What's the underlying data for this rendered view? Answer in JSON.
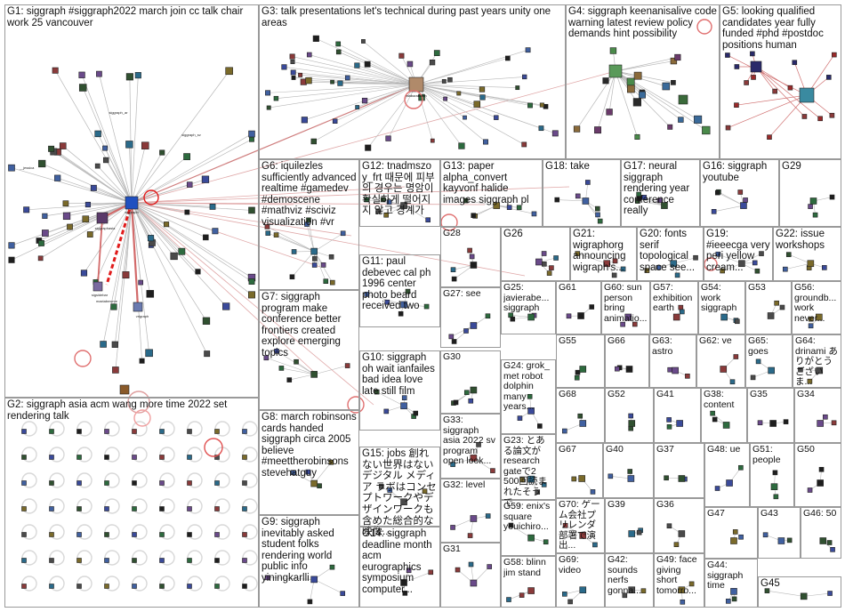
{
  "groups": [
    {
      "id": "G1",
      "label": "G1: siggraph #siggraph2022 march join cc talk chair work 25 vancouver",
      "density": 60
    },
    {
      "id": "G2",
      "label": "G2: siggraph asia acm wang more time 2022 set rendering talk",
      "density": 0
    },
    {
      "id": "G3",
      "label": "G3: talk presentations let's technical during past years unity one areas",
      "density": 50
    },
    {
      "id": "G4",
      "label": "G4: siggraph keenanisalive code warning latest review policy demands hint possibility",
      "density": 18
    },
    {
      "id": "G5",
      "label": "G5: looking qualified candidates year fully funded #phd #postdoc positions human",
      "density": 14
    },
    {
      "id": "G6",
      "label": "G6: iquilezles sufficiently advanced realtime #gamedev #demoscene #mathviz #sciviz visualization #vr",
      "density": 14
    },
    {
      "id": "G12",
      "label": "G12: tnadmszo y_frt 때문에 피부의 경우는 명암이 확실하게 떨어지지 않고 경계가",
      "density": 6
    },
    {
      "id": "G13",
      "label": "G13: paper alpha_convert kayvonf halide images siggraph pl",
      "density": 6
    },
    {
      "id": "G18",
      "label": "G18: take",
      "density": 6
    },
    {
      "id": "G17",
      "label": "G17: neural siggraph rendering year conference really",
      "density": 5
    },
    {
      "id": "G16",
      "label": "G16: siggraph youtube",
      "density": 5
    },
    {
      "id": "G29",
      "label": "G29",
      "density": 3
    },
    {
      "id": "G28",
      "label": "G28",
      "density": 4
    },
    {
      "id": "G26",
      "label": "G26",
      "density": 5
    },
    {
      "id": "G21",
      "label": "G21: wigraphorg announcing wigraph's...",
      "density": 4
    },
    {
      "id": "G20",
      "label": "G20: fonts serif topological space see...",
      "density": 4
    },
    {
      "id": "G19",
      "label": "G19: #ieeecga very peri yellow cream...",
      "density": 5
    },
    {
      "id": "G22",
      "label": "G22: issue workshops",
      "density": 4
    },
    {
      "id": "G11",
      "label": "G11: paul debevec cal ph 1996 center photo beard received two",
      "density": 5
    },
    {
      "id": "G7",
      "label": "G7: siggraph program make conference better frontiers created explore emerging topics",
      "density": 6
    },
    {
      "id": "G27",
      "label": "G27: see",
      "density": 4
    },
    {
      "id": "G25",
      "label": "G25: javierabe... siggraph",
      "density": 3
    },
    {
      "id": "G61",
      "label": "G61",
      "density": 2
    },
    {
      "id": "G60",
      "label": "G60: sun person bring animatio...",
      "density": 2
    },
    {
      "id": "G57",
      "label": "G57: exhibition earth",
      "density": 2
    },
    {
      "id": "G54",
      "label": "G54: work siggraph",
      "density": 2
    },
    {
      "id": "G53",
      "label": "G53",
      "density": 2
    },
    {
      "id": "G56",
      "label": "G56: groundb... work never...",
      "density": 2
    },
    {
      "id": "G10",
      "label": "G10: siggraph oh wait ianfailes bad idea love late still film",
      "density": 5
    },
    {
      "id": "G30",
      "label": "G30",
      "density": 4
    },
    {
      "id": "G24",
      "label": "G24: grok_ met robot dolphin many years...",
      "density": 3
    },
    {
      "id": "G55",
      "label": "G55",
      "density": 2
    },
    {
      "id": "G66",
      "label": "G66",
      "density": 2
    },
    {
      "id": "G63",
      "label": "G63: astro",
      "density": 2
    },
    {
      "id": "G62",
      "label": "G62: ve",
      "density": 2
    },
    {
      "id": "G65",
      "label": "G65: goes",
      "density": 2
    },
    {
      "id": "G64",
      "label": "G64: drinami ありがとうございま...",
      "density": 2
    },
    {
      "id": "G8",
      "label": "G8: march robinsons cards handed siggraph circa 2005 believe #meettherobinsons stevehatguy",
      "density": 4
    },
    {
      "id": "G68",
      "label": "G68",
      "density": 2
    },
    {
      "id": "G52",
      "label": "G52",
      "density": 2
    },
    {
      "id": "G41",
      "label": "G41",
      "density": 2
    },
    {
      "id": "G38",
      "label": "G38: content",
      "density": 2
    },
    {
      "id": "G35",
      "label": "G35",
      "density": 2
    },
    {
      "id": "G34",
      "label": "G34",
      "density": 2
    },
    {
      "id": "G33",
      "label": "G33: siggraph asia 2022 sv program open look...",
      "density": 3
    },
    {
      "id": "G23",
      "label": "G23: とある論文がresearch gateで2 500回読まれたそうで...",
      "density": 3
    },
    {
      "id": "G15",
      "label": "G15: jobs 創れない世界はない デジタル メディア ラボはコンセプトワークやデザインワークも含めた総合的な映像...",
      "density": 3
    },
    {
      "id": "G67",
      "label": "G67",
      "density": 2
    },
    {
      "id": "G40",
      "label": "G40",
      "density": 2
    },
    {
      "id": "G37",
      "label": "G37",
      "density": 2
    },
    {
      "id": "G48",
      "label": "G48: ue",
      "density": 2
    },
    {
      "id": "G51",
      "label": "G51: people",
      "density": 2
    },
    {
      "id": "G50",
      "label": "G50",
      "density": 2
    },
    {
      "id": "G32",
      "label": "G32: level",
      "density": 3
    },
    {
      "id": "G70",
      "label": "G70: ゲーム会社プリレンダ部署で演出...",
      "density": 2
    },
    {
      "id": "G39",
      "label": "G39",
      "density": 2
    },
    {
      "id": "G36",
      "label": "G36",
      "density": 2
    },
    {
      "id": "G47",
      "label": "G47",
      "density": 2
    },
    {
      "id": "G43",
      "label": "G43",
      "density": 2
    },
    {
      "id": "G46",
      "label": "G46: 50",
      "density": 2
    },
    {
      "id": "G9",
      "label": "G9: siggraph inevitably asked student folks rendering world public info yiningkarlli",
      "density": 4
    },
    {
      "id": "G59",
      "label": "G59: enix's square youichiro...",
      "density": 2
    },
    {
      "id": "G14",
      "label": "G14: siggraph deadline month acm eurographics symposium computer...",
      "density": 3
    },
    {
      "id": "G31",
      "label": "G31",
      "density": 3
    },
    {
      "id": "G58",
      "label": "G58: blinn jim stand",
      "density": 2
    },
    {
      "id": "G69",
      "label": "G69: video",
      "density": 2
    },
    {
      "id": "G42",
      "label": "G42: sounds nerfs gonna...",
      "density": 2
    },
    {
      "id": "G49",
      "label": "G49: face giving short tomorro...",
      "density": 2
    },
    {
      "id": "G44",
      "label": "G44: siggraph time",
      "density": 2
    },
    {
      "id": "G45",
      "label": "G45",
      "density": 2
    }
  ],
  "node_labels": {
    "G1": [
      "siggraph",
      "siggraphasia",
      "sigsidebar",
      "vrigraph",
      "__jessica",
      "siggraph_sv",
      "siggraph_ar",
      "maxtabmcme"
    ],
    "G3": [
      "elaborationm"
    ],
    "G4": [
      "keenanisalive",
      "yerbatoolbox"
    ],
    "G5": [
      "tambigo_graves",
      "alpsmart"
    ]
  },
  "colors": {
    "node_fill": "#3a4a9a",
    "edge": "#b8b8b8",
    "edge_strong": "#d26a6a",
    "edge_red": "#e01b1b",
    "border": "#9a9a9a"
  }
}
